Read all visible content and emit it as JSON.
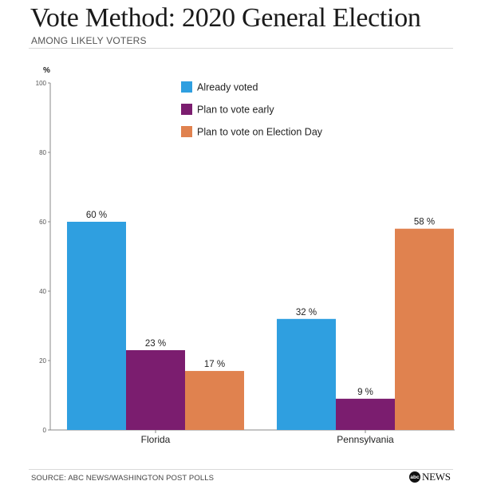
{
  "header": {
    "title": "Vote Method: 2020 General Election",
    "subtitle": "AMONG LIKELY VOTERS"
  },
  "footer": {
    "source": "SOURCE: ABC NEWS/WASHINGTON POST POLLS",
    "logo_badge": "abc",
    "logo_text": "NEWS"
  },
  "chart_data": {
    "type": "bar",
    "title": "Vote Method: 2020 General Election",
    "subtitle": "AMONG LIKELY VOTERS",
    "ylabel": "%",
    "ylim": [
      0,
      100
    ],
    "yticks": [
      0,
      20,
      40,
      60,
      80,
      100
    ],
    "categories": [
      "Florida",
      "Pennsylvania"
    ],
    "series": [
      {
        "name": "Already voted",
        "color": "#2f9fe0",
        "values": [
          60,
          32
        ],
        "labels": [
          "60 %",
          "32 %"
        ]
      },
      {
        "name": "Plan to vote early",
        "color": "#7b1d6f",
        "values": [
          23,
          9
        ],
        "labels": [
          "23 %",
          "9 %"
        ]
      },
      {
        "name": "Plan to vote on Election Day",
        "color": "#e0824f",
        "values": [
          17,
          58
        ],
        "labels": [
          "17 %",
          "58 %"
        ]
      }
    ],
    "legend_position": "top-center",
    "grid": false
  }
}
